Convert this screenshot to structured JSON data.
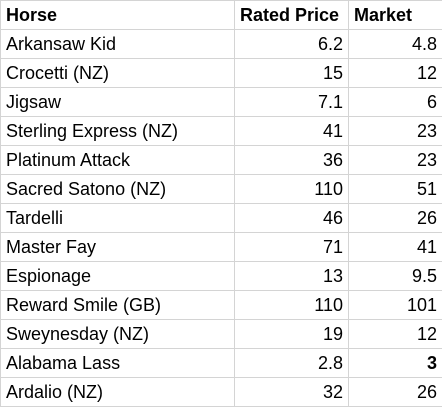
{
  "header": {
    "horse": "Horse",
    "rated_price": "Rated Price",
    "market": "Market"
  },
  "rows": [
    {
      "horse": "Arkansaw Kid",
      "rated_price": "6.2",
      "market": "4.8"
    },
    {
      "horse": "Crocetti (NZ)",
      "rated_price": "15",
      "market": "12"
    },
    {
      "horse": "Jigsaw",
      "rated_price": "7.1",
      "market": "6"
    },
    {
      "horse": "Sterling Express (NZ)",
      "rated_price": "41",
      "market": "23"
    },
    {
      "horse": "Platinum Attack",
      "rated_price": "36",
      "market": "23"
    },
    {
      "horse": "Sacred Satono (NZ)",
      "rated_price": "110",
      "market": "51"
    },
    {
      "horse": "Tardelli",
      "rated_price": "46",
      "market": "26"
    },
    {
      "horse": "Master Fay",
      "rated_price": "71",
      "market": "41"
    },
    {
      "horse": "Espionage",
      "rated_price": "13",
      "market": "9.5"
    },
    {
      "horse": "Reward Smile (GB)",
      "rated_price": "110",
      "market": "101"
    },
    {
      "horse": "Sweynesday (NZ)",
      "rated_price": "19",
      "market": "12"
    },
    {
      "horse": "Alabama Lass",
      "rated_price": "2.8",
      "market": "3",
      "market_bold": true
    },
    {
      "horse": "Ardalio (NZ)",
      "rated_price": "32",
      "market": "26"
    }
  ]
}
